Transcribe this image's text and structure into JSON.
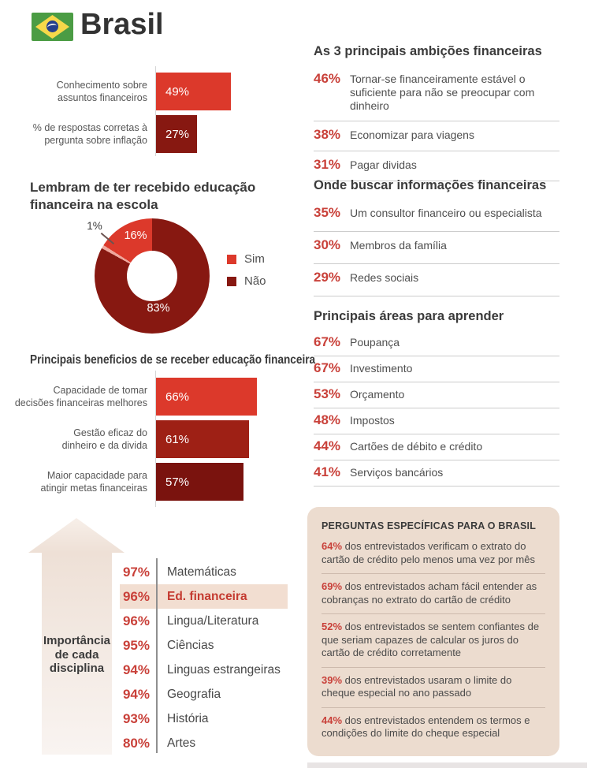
{
  "header": {
    "country": "Brasil"
  },
  "colors": {
    "bright_red": "#dc392b",
    "dark_red": "#871811",
    "mid_red": "#9e2015",
    "deep_red": "#7a130e",
    "pink": "#efa79d",
    "pct_red": "#c9413a",
    "beige_box": "#ecdccf",
    "highlight_band": "#f2ded1"
  },
  "chart_data": [
    {
      "id": "knowledge",
      "type": "bar",
      "orientation": "horizontal",
      "categories": [
        "Conhecimento sobre\nassuntos financeiros",
        "% de respostas corretas à\npergunta sobre inflação"
      ],
      "values": [
        49,
        27
      ],
      "value_labels": [
        "49%",
        "27%"
      ],
      "bar_colors": [
        "#dc392b",
        "#871811"
      ],
      "xlim": [
        0,
        100
      ]
    },
    {
      "id": "school_education",
      "type": "pie",
      "donut": true,
      "title": "Lembram de ter recebido educação\nfinanceira na escola",
      "labels": [
        "Sim",
        "Não",
        ""
      ],
      "values": [
        16,
        83,
        1
      ],
      "value_labels": [
        "16%",
        "83%",
        "1%"
      ],
      "slice_colors": [
        "#dc392b",
        "#871811",
        "#efa79d"
      ],
      "draw_order": [
        1,
        2,
        0
      ],
      "legend": [
        {
          "label": "Sim",
          "color": "#dc392b"
        },
        {
          "label": "Não",
          "color": "#871811"
        }
      ]
    },
    {
      "id": "benefits",
      "type": "bar",
      "orientation": "horizontal",
      "title": "Principais beneficios de se receber educação financeira",
      "categories": [
        "Capacidade de tomar\ndecisões financeiras melhores",
        "Gestão eficaz do\ndinheiro e da divida",
        "Maior capacidade para\natingir metas financeiras"
      ],
      "values": [
        66,
        61,
        57
      ],
      "value_labels": [
        "66%",
        "61%",
        "57%"
      ],
      "bar_colors": [
        "#dc392b",
        "#9e2015",
        "#7a130e"
      ],
      "xlim": [
        0,
        100
      ]
    },
    {
      "id": "ambitions",
      "type": "table",
      "title": "As 3 principais ambições financeiras",
      "rows": [
        [
          "46%",
          "Tornar-se financeiramente estável o suficiente para não se preocupar com dinheiro"
        ],
        [
          "38%",
          "Economizar para viagens"
        ],
        [
          "31%",
          "Pagar dividas"
        ]
      ]
    },
    {
      "id": "sources",
      "type": "table",
      "title": "Onde buscar informações financeiras",
      "rows": [
        [
          "35%",
          "Um consultor financeiro ou especialista"
        ],
        [
          "30%",
          "Membros da família"
        ],
        [
          "29%",
          "Redes sociais"
        ]
      ]
    },
    {
      "id": "areas",
      "type": "table",
      "title": "Principais áreas para aprender",
      "rows": [
        [
          "67%",
          "Poupança"
        ],
        [
          "67%",
          "Investimento"
        ],
        [
          "53%",
          "Orçamento"
        ],
        [
          "48%",
          "Impostos"
        ],
        [
          "44%",
          "Cartões de débito e crédito"
        ],
        [
          "41%",
          "Serviços bancários"
        ]
      ]
    },
    {
      "id": "disciplines",
      "type": "table",
      "axis_label_lines": [
        "Importância",
        "de cada",
        "disciplina"
      ],
      "highlight_row": 1,
      "rows": [
        [
          "97%",
          "Matemáticas"
        ],
        [
          "96%",
          "Ed. financeira"
        ],
        [
          "96%",
          "Lingua/Literatura"
        ],
        [
          "95%",
          "Ciências"
        ],
        [
          "94%",
          "Linguas estrangeiras"
        ],
        [
          "94%",
          "Geografia"
        ],
        [
          "93%",
          "História"
        ],
        [
          "80%",
          "Artes"
        ]
      ]
    },
    {
      "id": "brazil_questions",
      "type": "table",
      "title": "PERGUNTAS ESPECÍFICAS PARA O BRASIL",
      "rows": [
        [
          "64%",
          "dos entrevistados verificam o extrato do cartão de crédito pelo menos uma vez por mês"
        ],
        [
          "69%",
          "dos entrevistados acham fácil entender as cobranças no extrato do cartão de crédito"
        ],
        [
          "52%",
          "dos entrevistados se sentem confiantes de que seriam capazes de calcular os juros do cartão de crédito corretamente"
        ],
        [
          "39%",
          "dos entrevistados usaram o limite do cheque especial no ano passado"
        ],
        [
          "44%",
          "dos entrevistados entendem os termos e condições do limite do cheque especial"
        ]
      ]
    }
  ]
}
